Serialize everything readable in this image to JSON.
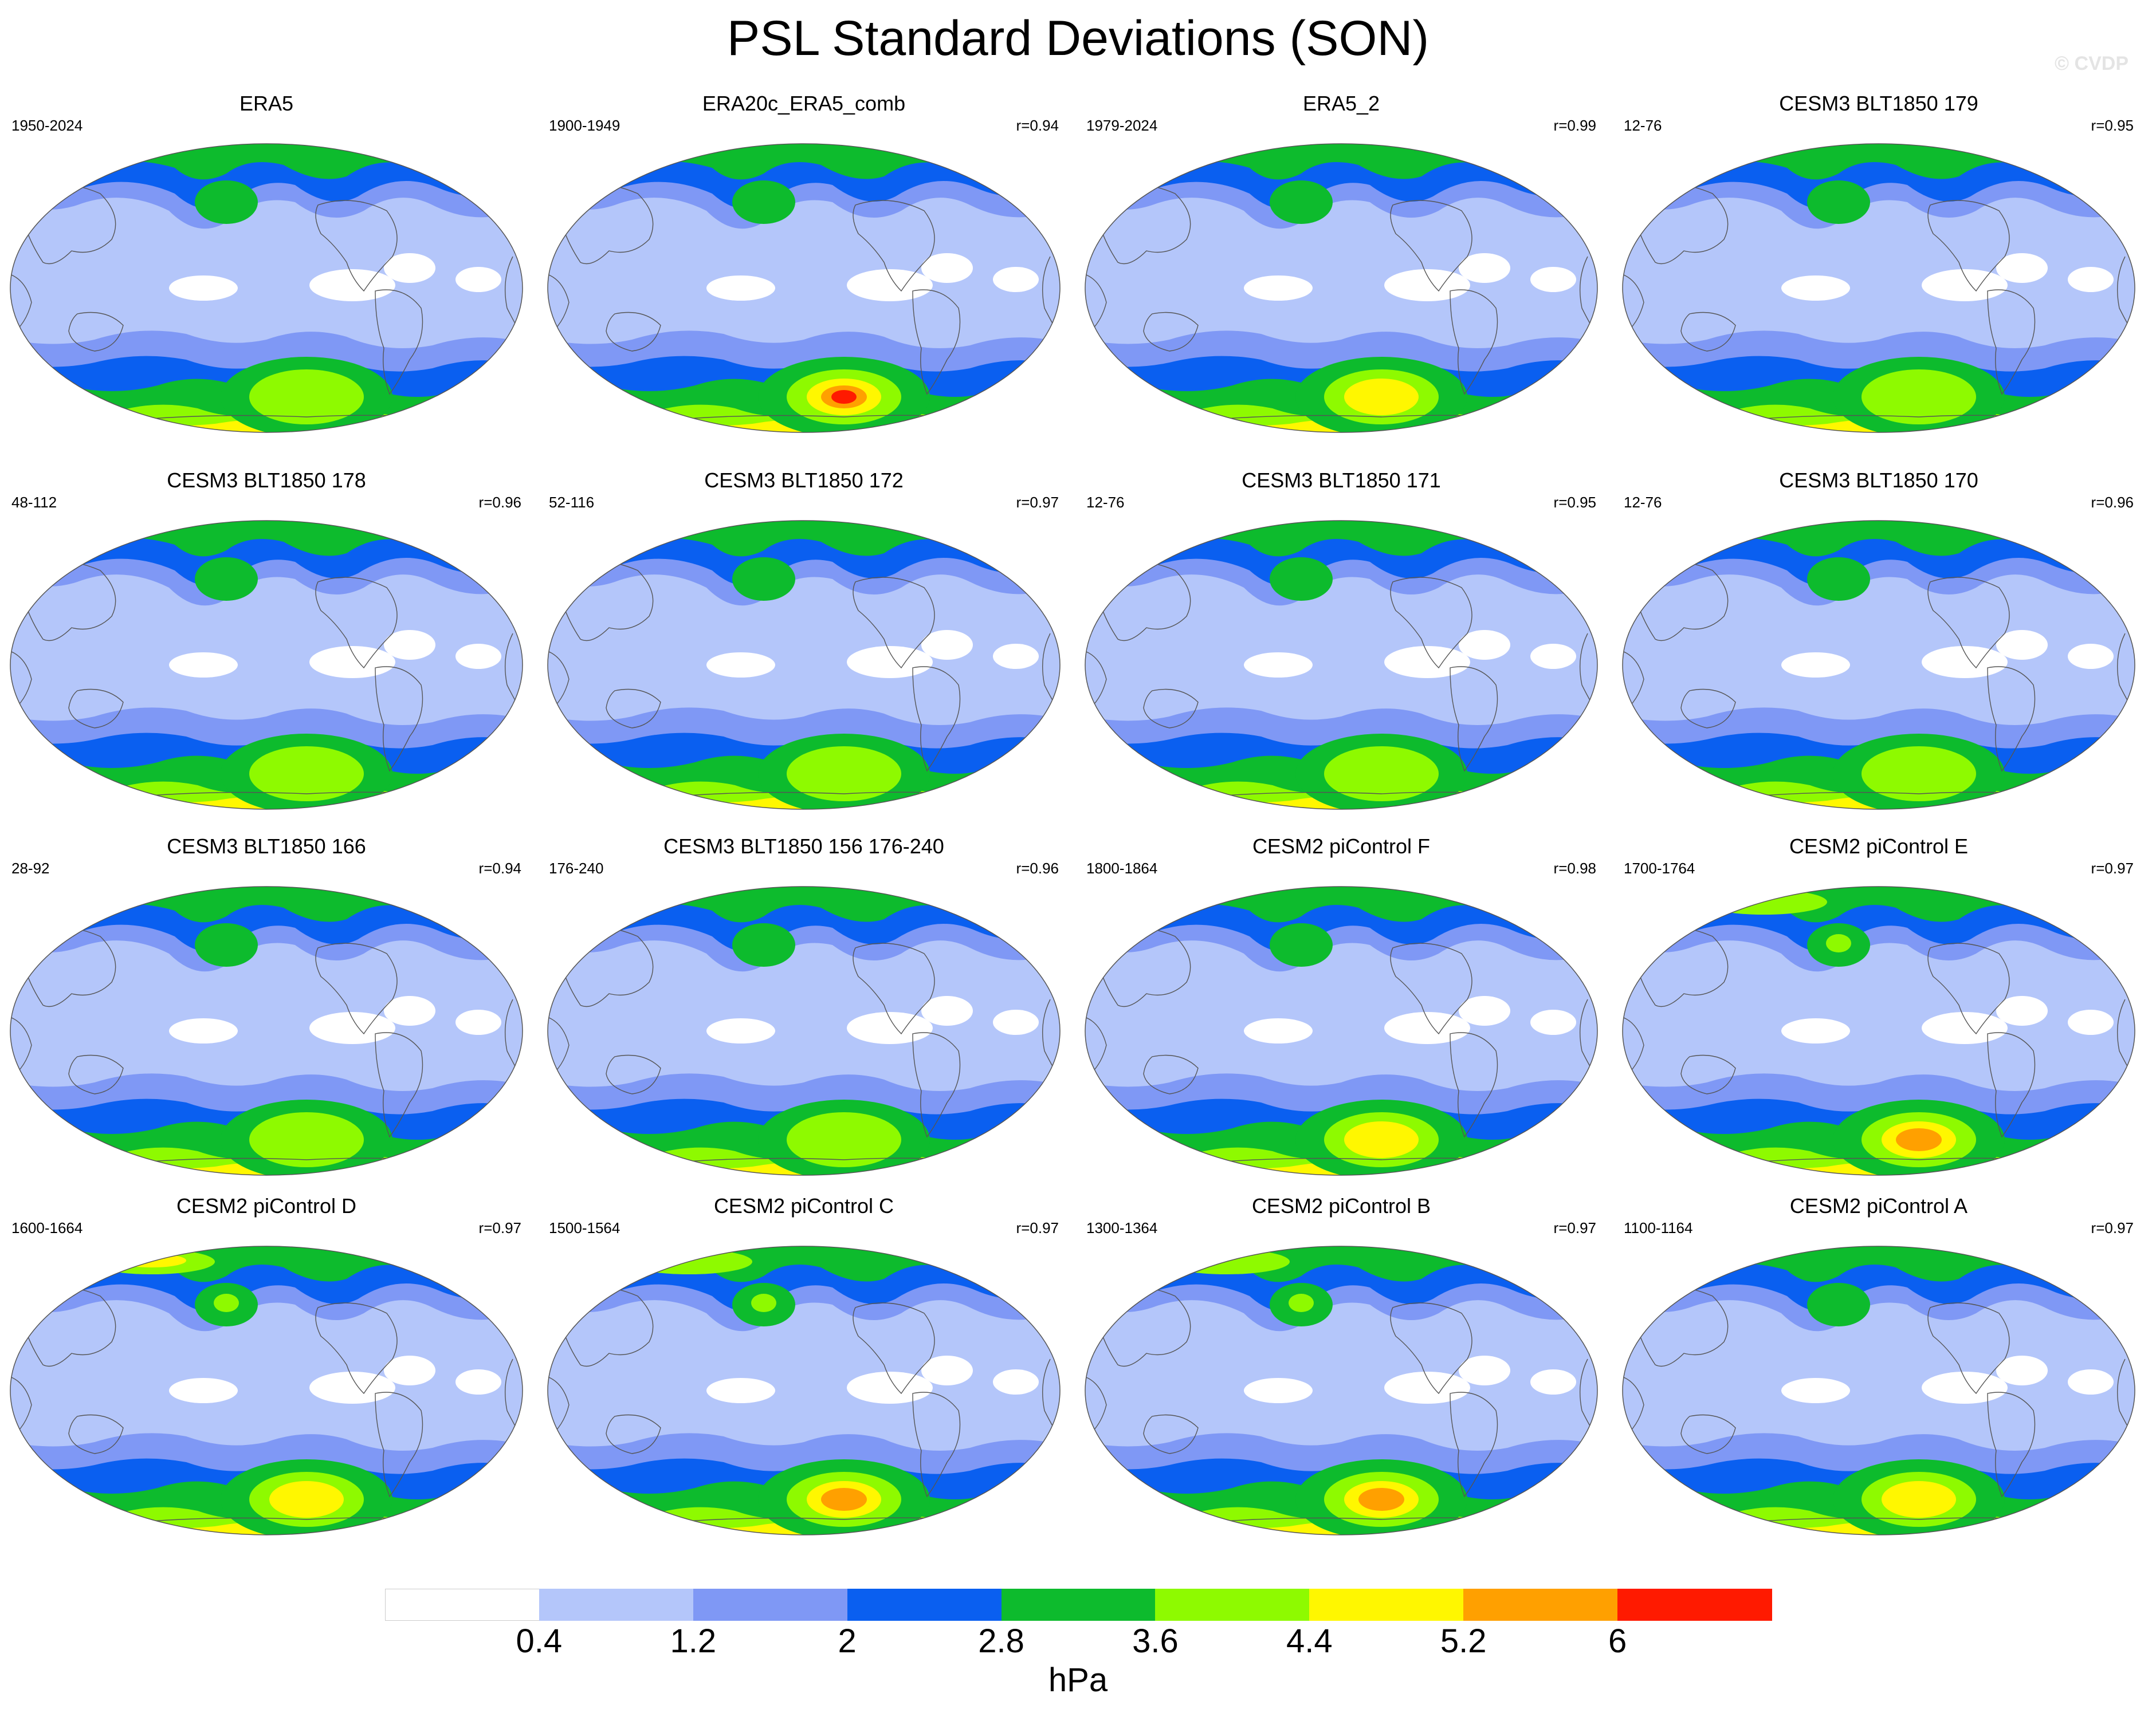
{
  "figure": {
    "title": "PSL Standard Deviations (SON)",
    "watermark": "© CVDP"
  },
  "panels": [
    {
      "title": "ERA5",
      "years": "1950-2024",
      "r": "",
      "peak": 5,
      "sh": 4,
      "nh": 3
    },
    {
      "title": "ERA20c_ERA5_comb",
      "years": "1900-1949",
      "r": "r=0.94",
      "peak": 8,
      "sh": 4,
      "nh": 3
    },
    {
      "title": "ERA5_2",
      "years": "1979-2024",
      "r": "r=0.99",
      "peak": 6,
      "sh": 4,
      "nh": 3
    },
    {
      "title": "CESM3 BLT1850 179",
      "years": "12-76",
      "r": "r=0.95",
      "peak": 5,
      "sh": 4,
      "nh": 3
    },
    {
      "title": "CESM3 BLT1850 178",
      "years": "48-112",
      "r": "r=0.96",
      "peak": 5,
      "sh": 4,
      "nh": 3
    },
    {
      "title": "CESM3 BLT1850 172",
      "years": "52-116",
      "r": "r=0.97",
      "peak": 5,
      "sh": 4,
      "nh": 3
    },
    {
      "title": "CESM3 BLT1850 171",
      "years": "12-76",
      "r": "r=0.95",
      "peak": 5,
      "sh": 4,
      "nh": 3
    },
    {
      "title": "CESM3 BLT1850 170",
      "years": "12-76",
      "r": "r=0.96",
      "peak": 5,
      "sh": 4,
      "nh": 3
    },
    {
      "title": "CESM3 BLT1850 166",
      "years": "28-92",
      "r": "r=0.94",
      "peak": 5,
      "sh": 4,
      "nh": 3
    },
    {
      "title": "CESM3 BLT1850 156 176-240",
      "years": "176-240",
      "r": "r=0.96",
      "peak": 5,
      "sh": 4,
      "nh": 3
    },
    {
      "title": "CESM2 piControl F",
      "years": "1800-1864",
      "r": "r=0.98",
      "peak": 6,
      "sh": 4,
      "nh": 3
    },
    {
      "title": "CESM2 piControl E",
      "years": "1700-1764",
      "r": "r=0.97",
      "peak": 7,
      "sh": 4,
      "nh": 5
    },
    {
      "title": "CESM2 piControl D",
      "years": "1600-1664",
      "r": "r=0.97",
      "peak": 6,
      "sh": 4,
      "nh": 6
    },
    {
      "title": "CESM2 piControl C",
      "years": "1500-1564",
      "r": "r=0.97",
      "peak": 7,
      "sh": 4,
      "nh": 5
    },
    {
      "title": "CESM2 piControl B",
      "years": "1300-1364",
      "r": "r=0.97",
      "peak": 7,
      "sh": 4,
      "nh": 5
    },
    {
      "title": "CESM2 piControl A",
      "years": "1100-1164",
      "r": "r=0.97",
      "peak": 6,
      "sh": 4,
      "nh": 3
    }
  ],
  "colorbar": {
    "units": "hPa",
    "labels": [
      "0.4",
      "1.2",
      "2",
      "2.8",
      "3.6",
      "4.4",
      "5.2",
      "6"
    ],
    "colors": [
      "#ffffff",
      "#b4c6fa",
      "#7f98f5",
      "#0a5ff0",
      "#0dbb2d",
      "#8efa00",
      "#fff700",
      "#ffa000",
      "#ff1a00"
    ]
  }
}
